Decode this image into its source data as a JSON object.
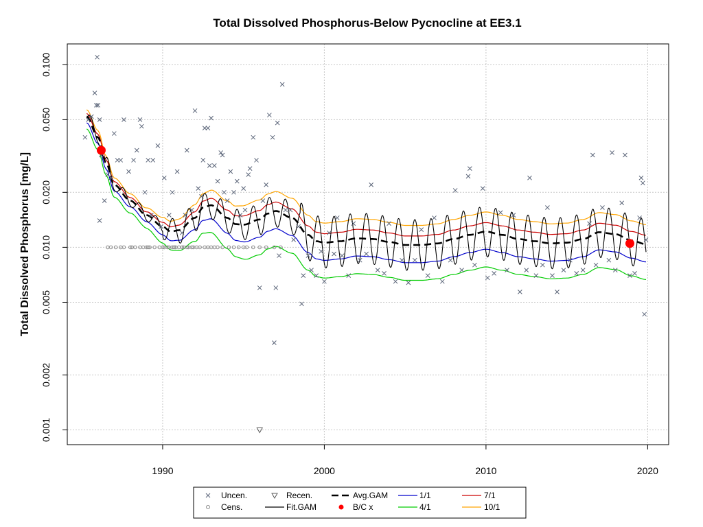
{
  "chart_data": {
    "type": "scatter",
    "title": "Total Dissolved Phosphorus-Below Pycnocline at EE3.1",
    "xlabel": "",
    "ylabel": "Total Dissolved Phosphorus [mg/L]",
    "x_scale": "linear",
    "y_scale": "log10",
    "xlim": [
      1984.1,
      2021.3
    ],
    "ylim": [
      0.00083,
      0.13
    ],
    "x_ticks": [
      1990,
      2000,
      2010,
      2020
    ],
    "x_tick_labels": [
      "1990",
      "2000",
      "2010",
      "2020"
    ],
    "y_ticks": [
      0.001,
      0.002,
      0.005,
      0.01,
      0.02,
      0.05,
      0.1
    ],
    "y_tick_labels": [
      "0.001",
      "0.002",
      "0.005",
      "0.010",
      "0.020",
      "0.050",
      "0.100"
    ],
    "grid": true,
    "legend": {
      "position": "bottom-center",
      "entries": [
        {
          "label": "Uncen.",
          "symbol": "x",
          "color": "#5a6478"
        },
        {
          "label": "Cens.",
          "symbol": "circle",
          "color": "#8a8a8a"
        },
        {
          "label": "Recen.",
          "symbol": "triangle-down",
          "color": "#5a5a5a"
        },
        {
          "label": "Fit.GAM",
          "symbol": "line",
          "color": "#000000"
        },
        {
          "label": "Avg.GAM",
          "symbol": "dashed-line",
          "color": "#000000"
        },
        {
          "label": "B/C x",
          "symbol": "dot",
          "color": "#ff0000"
        },
        {
          "label": "1/1",
          "symbol": "line",
          "color": "#0000cc"
        },
        {
          "label": "4/1",
          "symbol": "line",
          "color": "#00cc00"
        },
        {
          "label": "7/1",
          "symbol": "line",
          "color": "#cc0000"
        },
        {
          "label": "10/1",
          "symbol": "line",
          "color": "#ffa500"
        }
      ]
    },
    "colors": {
      "uncensored": "#5a6478",
      "censored": "#8a8a8a",
      "recensored": "#5a5a5a",
      "fit_gam": "#000000",
      "avg_gam": "#000000",
      "bc_points": "#ff0000",
      "d_1_1": "#0000cc",
      "d_4_1": "#00cc00",
      "d_7_1": "#cc0000",
      "d_10_1": "#ffa500"
    },
    "avg_gam": {
      "x": [
        1985.3,
        1986,
        1986.5,
        1987,
        1988,
        1989,
        1990,
        1990.5,
        1991,
        1992,
        1992.5,
        1993,
        1994,
        1994.5,
        1995,
        1996,
        1996.5,
        1997,
        1998,
        1999,
        1999.5,
        2000,
        2001,
        2002,
        2003,
        2004,
        2005,
        2006,
        2007,
        2008,
        2009,
        2010,
        2011,
        2012,
        2013,
        2014,
        2015,
        2016,
        2017,
        2018,
        2019,
        2019.9
      ],
      "y": [
        0.052,
        0.04,
        0.029,
        0.022,
        0.018,
        0.015,
        0.013,
        0.0122,
        0.0124,
        0.0145,
        0.0165,
        0.017,
        0.0145,
        0.0134,
        0.0133,
        0.0142,
        0.0153,
        0.0158,
        0.0145,
        0.0117,
        0.0108,
        0.0106,
        0.0108,
        0.0112,
        0.0111,
        0.0107,
        0.0103,
        0.0103,
        0.0105,
        0.0111,
        0.0117,
        0.0122,
        0.0117,
        0.0111,
        0.0108,
        0.0105,
        0.0106,
        0.0111,
        0.0121,
        0.0118,
        0.0109,
        0.0104
      ]
    },
    "seasonal_dates": {
      "1/1": {
        "offset": 0.8,
        "color": "#0000cc"
      },
      "4/1": {
        "offset": 0.64,
        "color": "#00cc00"
      },
      "7/1": {
        "offset": 1.12,
        "color": "#cc0000"
      },
      "10/1": {
        "offset": 1.28,
        "color": "#ffa500"
      }
    },
    "bc_points": [
      {
        "x": 1986.2,
        "y": 0.034
      },
      {
        "x": 2018.9,
        "y": 0.0105
      }
    ],
    "recensored_points": [
      {
        "x": 1996.0,
        "y": 0.001
      }
    ],
    "uncensored_points": [
      [
        1985.2,
        0.04
      ],
      [
        1985.4,
        0.05
      ],
      [
        1985.6,
        0.052
      ],
      [
        1985.8,
        0.07
      ],
      [
        1985.9,
        0.06
      ],
      [
        1986.0,
        0.06
      ],
      [
        1986.1,
        0.05
      ],
      [
        1985.95,
        0.11
      ],
      [
        1986.2,
        0.032
      ],
      [
        1986.4,
        0.018
      ],
      [
        1986.1,
        0.014
      ],
      [
        1986.6,
        0.025
      ],
      [
        1986.8,
        0.024
      ],
      [
        1987.0,
        0.042
      ],
      [
        1987.2,
        0.03
      ],
      [
        1987.4,
        0.03
      ],
      [
        1987.6,
        0.05
      ],
      [
        1987.9,
        0.026
      ],
      [
        1988.2,
        0.03
      ],
      [
        1988.4,
        0.034
      ],
      [
        1988.6,
        0.05
      ],
      [
        1988.7,
        0.046
      ],
      [
        1988.9,
        0.02
      ],
      [
        1989.1,
        0.03
      ],
      [
        1989.3,
        0.015
      ],
      [
        1989.4,
        0.03
      ],
      [
        1989.7,
        0.036
      ],
      [
        1989.9,
        0.013
      ],
      [
        1990.1,
        0.024
      ],
      [
        1990.4,
        0.015
      ],
      [
        1990.6,
        0.02
      ],
      [
        1990.9,
        0.026
      ],
      [
        1991.2,
        0.012
      ],
      [
        1991.4,
        0.015
      ],
      [
        1991.5,
        0.034
      ],
      [
        1991.8,
        0.016
      ],
      [
        1992.0,
        0.056
      ],
      [
        1992.2,
        0.021
      ],
      [
        1992.4,
        0.019
      ],
      [
        1992.5,
        0.03
      ],
      [
        1992.6,
        0.045
      ],
      [
        1992.8,
        0.045
      ],
      [
        1992.9,
        0.028
      ],
      [
        1993.0,
        0.051
      ],
      [
        1993.2,
        0.028
      ],
      [
        1993.4,
        0.023
      ],
      [
        1993.6,
        0.033
      ],
      [
        1993.7,
        0.032
      ],
      [
        1993.8,
        0.02
      ],
      [
        1994.0,
        0.018
      ],
      [
        1994.2,
        0.026
      ],
      [
        1994.4,
        0.02
      ],
      [
        1994.6,
        0.023
      ],
      [
        1994.8,
        0.015
      ],
      [
        1995.0,
        0.021
      ],
      [
        1995.1,
        0.016
      ],
      [
        1995.3,
        0.025
      ],
      [
        1995.4,
        0.027
      ],
      [
        1995.6,
        0.04
      ],
      [
        1995.8,
        0.03
      ],
      [
        1996.0,
        0.006
      ],
      [
        1996.2,
        0.018
      ],
      [
        1996.4,
        0.022
      ],
      [
        1996.6,
        0.053
      ],
      [
        1996.8,
        0.04
      ],
      [
        1996.9,
        0.003
      ],
      [
        1997.0,
        0.006
      ],
      [
        1997.1,
        0.048
      ],
      [
        1997.2,
        0.009
      ],
      [
        1997.4,
        0.078
      ],
      [
        1997.6,
        0.016
      ],
      [
        1997.9,
        0.016
      ],
      [
        1998.1,
        0.011
      ],
      [
        1998.4,
        0.013
      ],
      [
        1998.6,
        0.0049
      ],
      [
        1998.7,
        0.007
      ],
      [
        1999.0,
        0.009
      ],
      [
        1999.2,
        0.0075
      ],
      [
        1999.5,
        0.007
      ],
      [
        1999.8,
        0.0095
      ],
      [
        2000.0,
        0.0065
      ],
      [
        2000.3,
        0.012
      ],
      [
        2000.6,
        0.0092
      ],
      [
        2000.8,
        0.0145
      ],
      [
        2001.1,
        0.009
      ],
      [
        2001.5,
        0.007
      ],
      [
        2001.8,
        0.0135
      ],
      [
        2002.2,
        0.0085
      ],
      [
        2002.6,
        0.0092
      ],
      [
        2002.9,
        0.022
      ],
      [
        2003.3,
        0.0075
      ],
      [
        2003.7,
        0.0072
      ],
      [
        2004.0,
        0.0135
      ],
      [
        2004.4,
        0.0065
      ],
      [
        2004.8,
        0.0085
      ],
      [
        2005.2,
        0.0064
      ],
      [
        2005.6,
        0.0085
      ],
      [
        2006.0,
        0.0125
      ],
      [
        2006.4,
        0.007
      ],
      [
        2006.8,
        0.0145
      ],
      [
        2007.3,
        0.0065
      ],
      [
        2007.8,
        0.0085
      ],
      [
        2008.1,
        0.0205
      ],
      [
        2008.5,
        0.0075
      ],
      [
        2008.9,
        0.0245
      ],
      [
        2009.0,
        0.027
      ],
      [
        2009.3,
        0.008
      ],
      [
        2009.8,
        0.021
      ],
      [
        2010.1,
        0.0068
      ],
      [
        2010.5,
        0.0072
      ],
      [
        2010.9,
        0.0155
      ],
      [
        2011.3,
        0.0075
      ],
      [
        2011.7,
        0.015
      ],
      [
        2012.1,
        0.0057
      ],
      [
        2012.5,
        0.0075
      ],
      [
        2012.7,
        0.024
      ],
      [
        2013.1,
        0.007
      ],
      [
        2013.5,
        0.008
      ],
      [
        2013.8,
        0.0165
      ],
      [
        2014.1,
        0.007
      ],
      [
        2014.4,
        0.0057
      ],
      [
        2014.8,
        0.0075
      ],
      [
        2015.2,
        0.0085
      ],
      [
        2015.6,
        0.0072
      ],
      [
        2016.0,
        0.0075
      ],
      [
        2016.4,
        0.0135
      ],
      [
        2016.6,
        0.032
      ],
      [
        2016.8,
        0.008
      ],
      [
        2017.2,
        0.0165
      ],
      [
        2017.6,
        0.0085
      ],
      [
        2017.8,
        0.033
      ],
      [
        2018.0,
        0.0075
      ],
      [
        2018.4,
        0.0175
      ],
      [
        2018.6,
        0.032
      ],
      [
        2018.9,
        0.007
      ],
      [
        2019.2,
        0.0072
      ],
      [
        2019.5,
        0.0145
      ],
      [
        2019.6,
        0.024
      ],
      [
        2019.7,
        0.0225
      ],
      [
        2019.8,
        0.0043
      ],
      [
        2019.9,
        0.011
      ]
    ],
    "censored_points": [
      [
        1986.6,
        0.01
      ],
      [
        1986.8,
        0.01
      ],
      [
        1987.1,
        0.01
      ],
      [
        1987.4,
        0.01
      ],
      [
        1987.6,
        0.01
      ],
      [
        1988.0,
        0.01
      ],
      [
        1988.1,
        0.01
      ],
      [
        1988.3,
        0.01
      ],
      [
        1988.6,
        0.01
      ],
      [
        1988.8,
        0.01
      ],
      [
        1989.0,
        0.01
      ],
      [
        1989.1,
        0.01
      ],
      [
        1989.2,
        0.01
      ],
      [
        1989.5,
        0.01
      ],
      [
        1989.8,
        0.01
      ],
      [
        1990.0,
        0.01
      ],
      [
        1990.1,
        0.01
      ],
      [
        1990.3,
        0.01
      ],
      [
        1990.4,
        0.01
      ],
      [
        1990.6,
        0.01
      ],
      [
        1990.7,
        0.01
      ],
      [
        1990.8,
        0.01
      ],
      [
        1991.0,
        0.01
      ],
      [
        1991.2,
        0.01
      ],
      [
        1991.3,
        0.01
      ],
      [
        1991.5,
        0.01
      ],
      [
        1991.6,
        0.01
      ],
      [
        1991.8,
        0.01
      ],
      [
        1991.9,
        0.01
      ],
      [
        1992.1,
        0.01
      ],
      [
        1992.3,
        0.01
      ],
      [
        1992.6,
        0.01
      ],
      [
        1992.8,
        0.01
      ],
      [
        1993.0,
        0.01
      ],
      [
        1993.2,
        0.01
      ],
      [
        1993.4,
        0.01
      ],
      [
        1993.7,
        0.01
      ],
      [
        1994.1,
        0.01
      ],
      [
        1994.4,
        0.01
      ],
      [
        1994.7,
        0.01
      ],
      [
        1995.0,
        0.01
      ],
      [
        1995.2,
        0.01
      ],
      [
        1995.6,
        0.01
      ],
      [
        1996.0,
        0.01
      ],
      [
        1996.4,
        0.01
      ],
      [
        1996.9,
        0.01
      ],
      [
        1997.3,
        0.01
      ]
    ]
  }
}
